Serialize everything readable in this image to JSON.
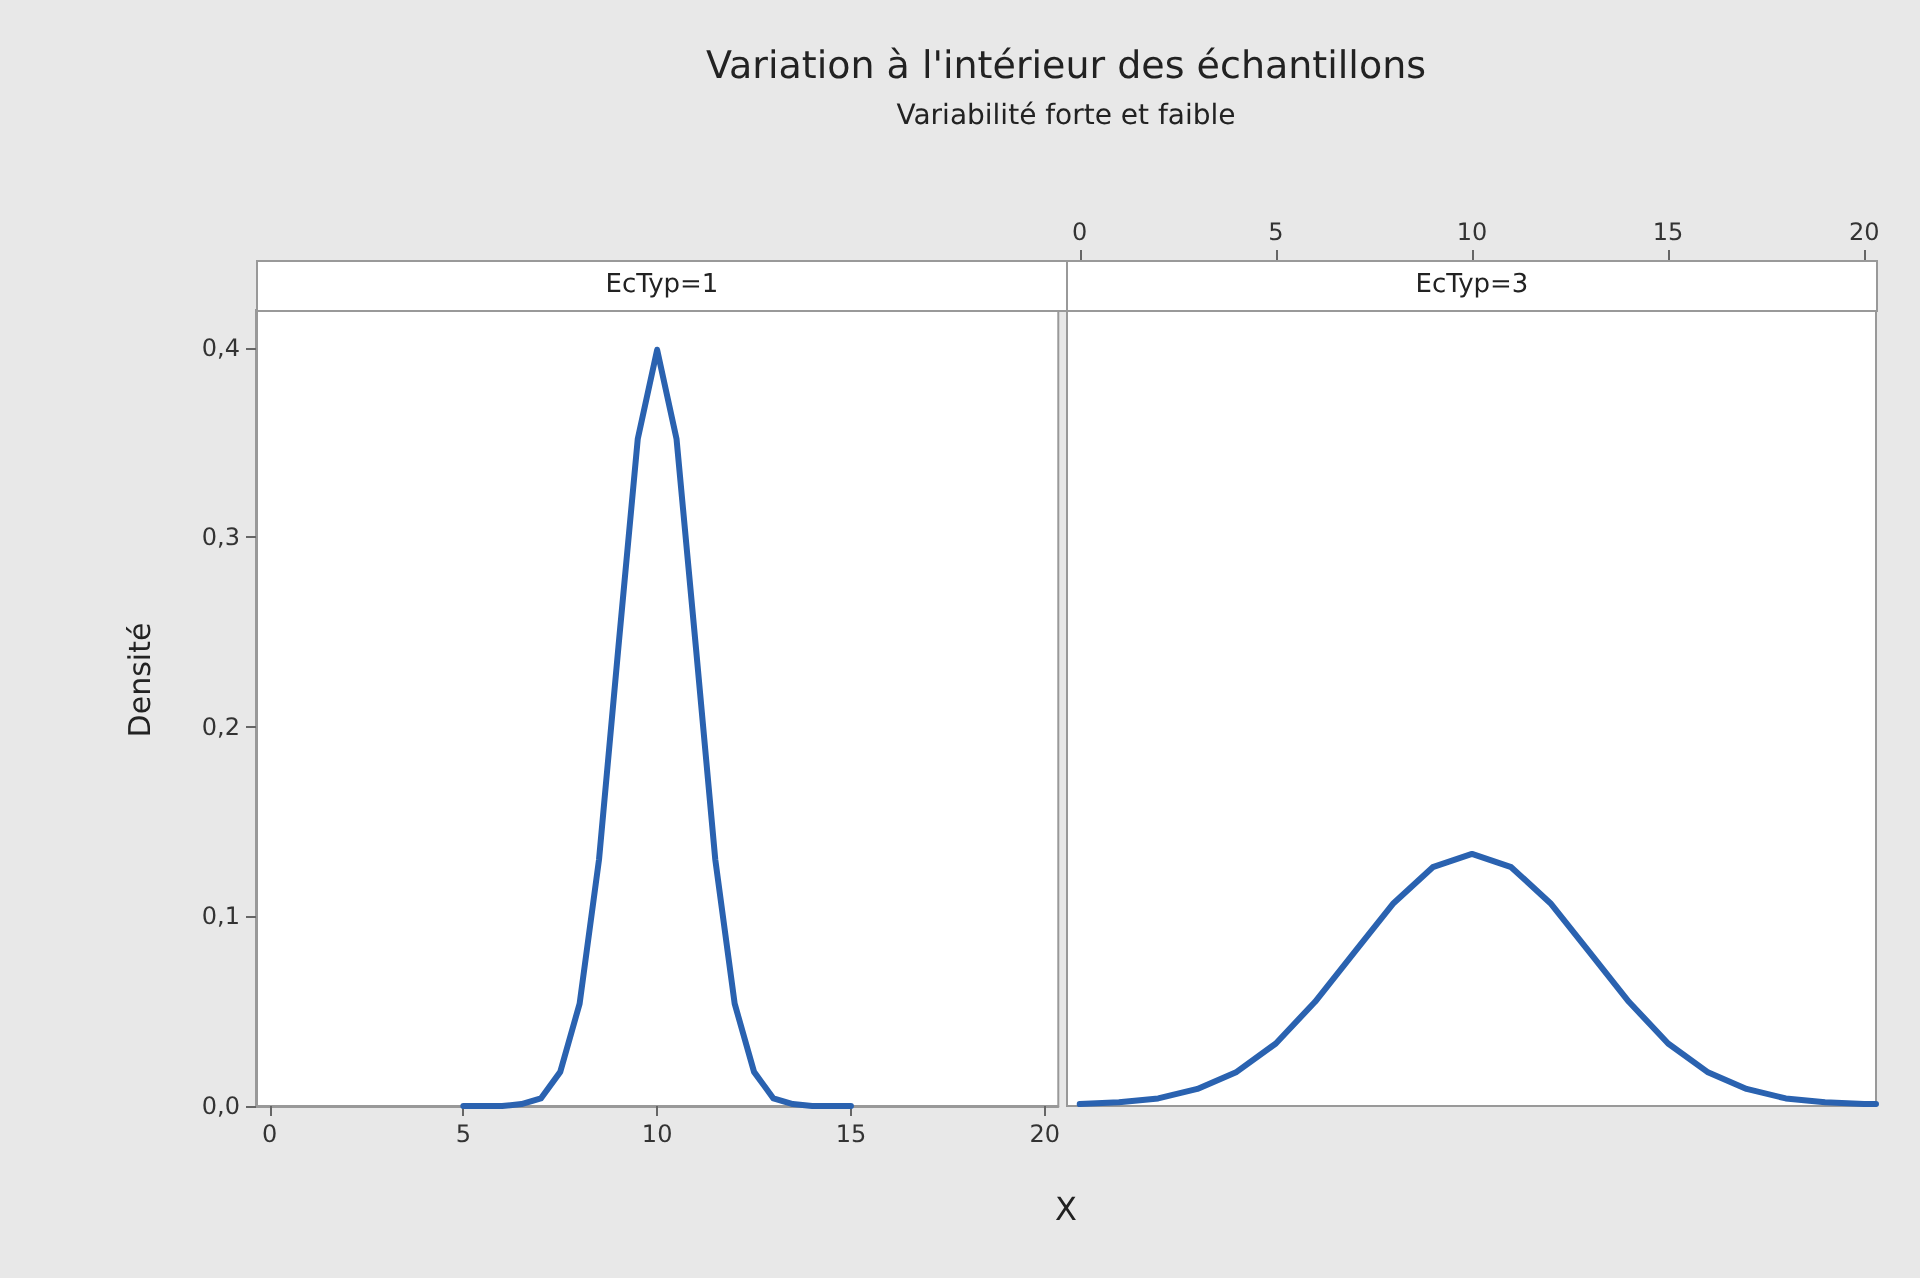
{
  "chart_data": [
    {
      "type": "line",
      "title": "Variation à l'intérieur des échantillons",
      "subtitle": "Variabilité forte et faible",
      "annotations": [
        "EcTyp=1"
      ],
      "xlabel": "X",
      "ylabel": "Densité",
      "marker": "none",
      "x": [
        5,
        6,
        6.5,
        7,
        7.5,
        8,
        8.5,
        9,
        9.5,
        10,
        10.5,
        11,
        11.5,
        12,
        12.5,
        13,
        13.5,
        14,
        15
      ],
      "series": [
        {
          "color": "#2a62b0",
          "values": [
            0,
            0,
            0.001,
            0.004,
            0.018,
            0.054,
            0.13,
            0.242,
            0.352,
            0.399,
            0.352,
            0.242,
            0.13,
            0.054,
            0.018,
            0.004,
            0.001,
            0,
            0
          ]
        }
      ],
      "xlim": [
        -0.35,
        20.35
      ],
      "xticks": [
        0,
        5,
        10,
        15,
        20
      ],
      "ylim": [
        0,
        0.42
      ],
      "yticks": [
        {
          "value": 0,
          "label": "0,0"
        },
        {
          "value": 0.1,
          "label": "0,1"
        },
        {
          "value": 0.2,
          "label": "0,2"
        },
        {
          "value": 0.3,
          "label": "0,3"
        },
        {
          "value": 0.4,
          "label": "0,4"
        }
      ]
    },
    {
      "type": "line",
      "annotations": [
        "EcTyp=3"
      ],
      "marker": "none",
      "tick_labels": "x",
      "x": [
        0,
        1,
        2,
        3,
        4,
        5,
        6,
        7,
        8,
        9,
        10,
        11,
        12,
        13,
        14,
        15,
        16,
        17,
        18,
        19,
        20,
        20.3
      ],
      "series": [
        {
          "color": "#2a62b0",
          "values": [
            0.001,
            0.002,
            0.004,
            0.009,
            0.018,
            0.033,
            0.055,
            0.081,
            0.107,
            0.126,
            0.133,
            0.126,
            0.107,
            0.081,
            0.055,
            0.033,
            0.018,
            0.009,
            0.004,
            0.002,
            0.001,
            0.001
          ]
        }
      ],
      "xlim": [
        -0.35,
        20.3
      ],
      "xticks": [
        0,
        5,
        10,
        15,
        20
      ],
      "ylim": [
        0,
        0.42
      ]
    }
  ]
}
